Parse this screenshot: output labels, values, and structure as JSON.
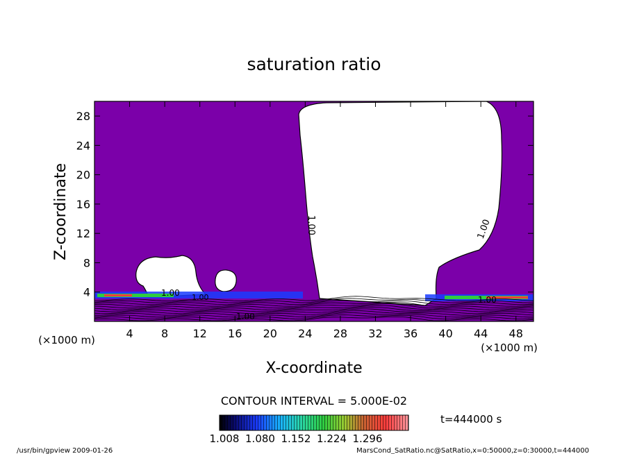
{
  "chart_data": {
    "type": "heatmap",
    "title": "saturation ratio",
    "xlabel": "X-coordinate",
    "ylabel": "Z-coordinate",
    "x_unit": "(×1000 m)",
    "y_unit": "(×1000 m)",
    "xlim": [
      0,
      50
    ],
    "ylim": [
      0,
      30
    ],
    "xticks": [
      4,
      8,
      12,
      16,
      20,
      24,
      28,
      32,
      36,
      40,
      44,
      48
    ],
    "yticks": [
      4,
      8,
      12,
      16,
      20,
      24,
      28
    ],
    "contour_interval": "CONTOUR INTERVAL = 5.000E-02",
    "time_label": "t=444000 s",
    "colorbar_labels": [
      "1.008",
      "1.080",
      "1.152",
      "1.224",
      "1.296"
    ],
    "contour_labels": [
      "1.00",
      "1.00",
      "1.00",
      "1.00",
      "1.00",
      "1.00"
    ],
    "fill_color": "#7b00a9",
    "footer_left": "/usr/bin/gpview   2009-01-26",
    "footer_right": "MarsCond_SatRatio.nc@SatRatio,x=0:50000,z=0:30000,t=444000"
  }
}
